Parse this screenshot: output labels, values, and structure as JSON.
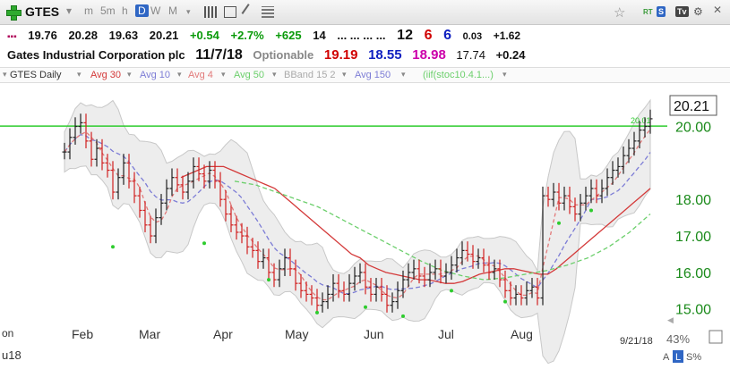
{
  "toolbar": {
    "symbol": "GTES",
    "timeframes": [
      "m",
      "5m",
      "h",
      "D",
      "W",
      "M"
    ],
    "active_timeframe": "D",
    "right_labels": [
      "RT",
      "S",
      "Tv"
    ]
  },
  "quote": {
    "open": "19.76",
    "high": "20.28",
    "low": "19.63",
    "close": "20.21",
    "change": "+0.54",
    "change_pct": "+2.7%",
    "volume_change": "+625",
    "field_14": "14",
    "dots": "... ... ... ...",
    "rank1": "12",
    "rank2": "6",
    "rank3": "6",
    "small_val": "0.03",
    "change2": "+1.62"
  },
  "company": {
    "name": "Gates Industrial Corporation plc",
    "date": "11/7/18",
    "optionable": "Optionable",
    "v1": "19.19",
    "v2": "18.55",
    "v3": "18.98",
    "v4": "17.74",
    "v5": "+0.24"
  },
  "legend": {
    "items": [
      {
        "label": "GTES Daily",
        "color": "#333333"
      },
      {
        "label": "Avg 30",
        "color": "#d43a3a"
      },
      {
        "label": "Avg 10",
        "color": "#7d7dd6"
      },
      {
        "label": "Avg 4",
        "color": "#e27a7a"
      },
      {
        "label": "Avg 50",
        "color": "#6ccf6c"
      },
      {
        "label": "BBand 15 2",
        "color": "#aaaaaa"
      },
      {
        "label": "Avg 150",
        "color": "#7d7dd6"
      },
      {
        "label": "(iif(stoc10.4.1...)",
        "color": "#6ccf6c"
      }
    ]
  },
  "chart_data": {
    "type": "line",
    "symbol": "GTES",
    "ylim": [
      14.7,
      20.6
    ],
    "y_ticks": [
      "15.00",
      "16.00",
      "17.00",
      "18.00",
      "20.00"
    ],
    "x_labels": [
      "Feb",
      "Mar",
      "Apr",
      "May",
      "Jun",
      "Jul",
      "Aug"
    ],
    "last_price_label": "20.21",
    "hline_label": "20.01",
    "hline_value": 20.01,
    "date_label": "9/21/18",
    "zoom_label": "43%",
    "scale_buttons": [
      "A",
      "L",
      "S%"
    ],
    "left_edge_labels": [
      "on",
      "u18"
    ],
    "colors": {
      "price": "#111111",
      "avg30": "#d43a3a",
      "avg10": "#7d7dd6",
      "avg4": "#e27a7a",
      "avg50": "#6ccf6c",
      "bband": "#c8c8c8",
      "hline": "#2ecc2e"
    },
    "close_series": [
      19.3,
      19.7,
      20.0,
      20.1,
      19.6,
      19.1,
      19.4,
      19.0,
      18.8,
      18.2,
      18.6,
      19.0,
      18.5,
      18.1,
      17.7,
      17.3,
      17.0,
      17.5,
      17.9,
      18.3,
      18.6,
      18.4,
      18.2,
      18.5,
      18.9,
      18.7,
      18.5,
      18.8,
      18.5,
      18.0,
      17.6,
      17.3,
      17.1,
      17.0,
      16.7,
      16.6,
      16.3,
      16.4,
      16.0,
      15.8,
      16.1,
      16.4,
      16.1,
      15.7,
      15.5,
      15.4,
      15.3,
      15.1,
      15.2,
      15.4,
      15.7,
      15.5,
      15.4,
      15.7,
      15.9,
      16.0,
      15.6,
      15.4,
      15.6,
      15.4,
      15.1,
      15.2,
      15.5,
      15.8,
      16.0,
      16.1,
      15.9,
      15.8,
      16.0,
      16.1,
      15.9,
      16.0,
      16.2,
      16.4,
      16.6,
      16.5,
      16.3,
      16.4,
      16.2,
      16.0,
      16.1,
      15.8,
      15.5,
      15.3,
      15.4,
      15.3,
      15.5,
      15.6,
      15.3,
      18.1,
      18.0,
      18.2,
      17.9,
      18.1,
      17.8,
      17.6,
      17.9,
      18.1,
      18.3,
      18.1,
      18.3,
      18.6,
      18.8,
      18.9,
      19.2,
      19.4,
      19.6,
      19.9,
      20.0,
      20.21
    ],
    "avg30": [
      18.6,
      18.7,
      18.8,
      18.9,
      18.9,
      18.9,
      18.8,
      18.7,
      18.6,
      18.5,
      18.4,
      18.3,
      18.1,
      17.9,
      17.7,
      17.5,
      17.3,
      17.1,
      16.9,
      16.7,
      16.5,
      16.4,
      16.2,
      16.1,
      16.0,
      15.95,
      15.9,
      15.85,
      15.8,
      15.8,
      15.75,
      15.7,
      15.7,
      15.75,
      15.85,
      15.95,
      16.0,
      16.05,
      16.1,
      16.1,
      16.05,
      16.0,
      15.95,
      15.95,
      16.1,
      16.3,
      16.5,
      16.7,
      16.9,
      17.1,
      17.3,
      17.5,
      17.7,
      17.9,
      18.1,
      18.3
    ],
    "avg50": [
      18.5,
      18.4,
      18.2,
      18.0,
      17.8,
      17.5,
      17.2,
      16.9,
      16.6,
      16.3,
      16.05,
      15.9,
      15.8,
      15.85,
      15.95,
      16.05,
      16.2,
      16.4,
      16.7,
      17.1,
      17.6
    ],
    "avg150": [
      16.9,
      16.9,
      16.85,
      16.85,
      16.88,
      16.92
    ]
  }
}
